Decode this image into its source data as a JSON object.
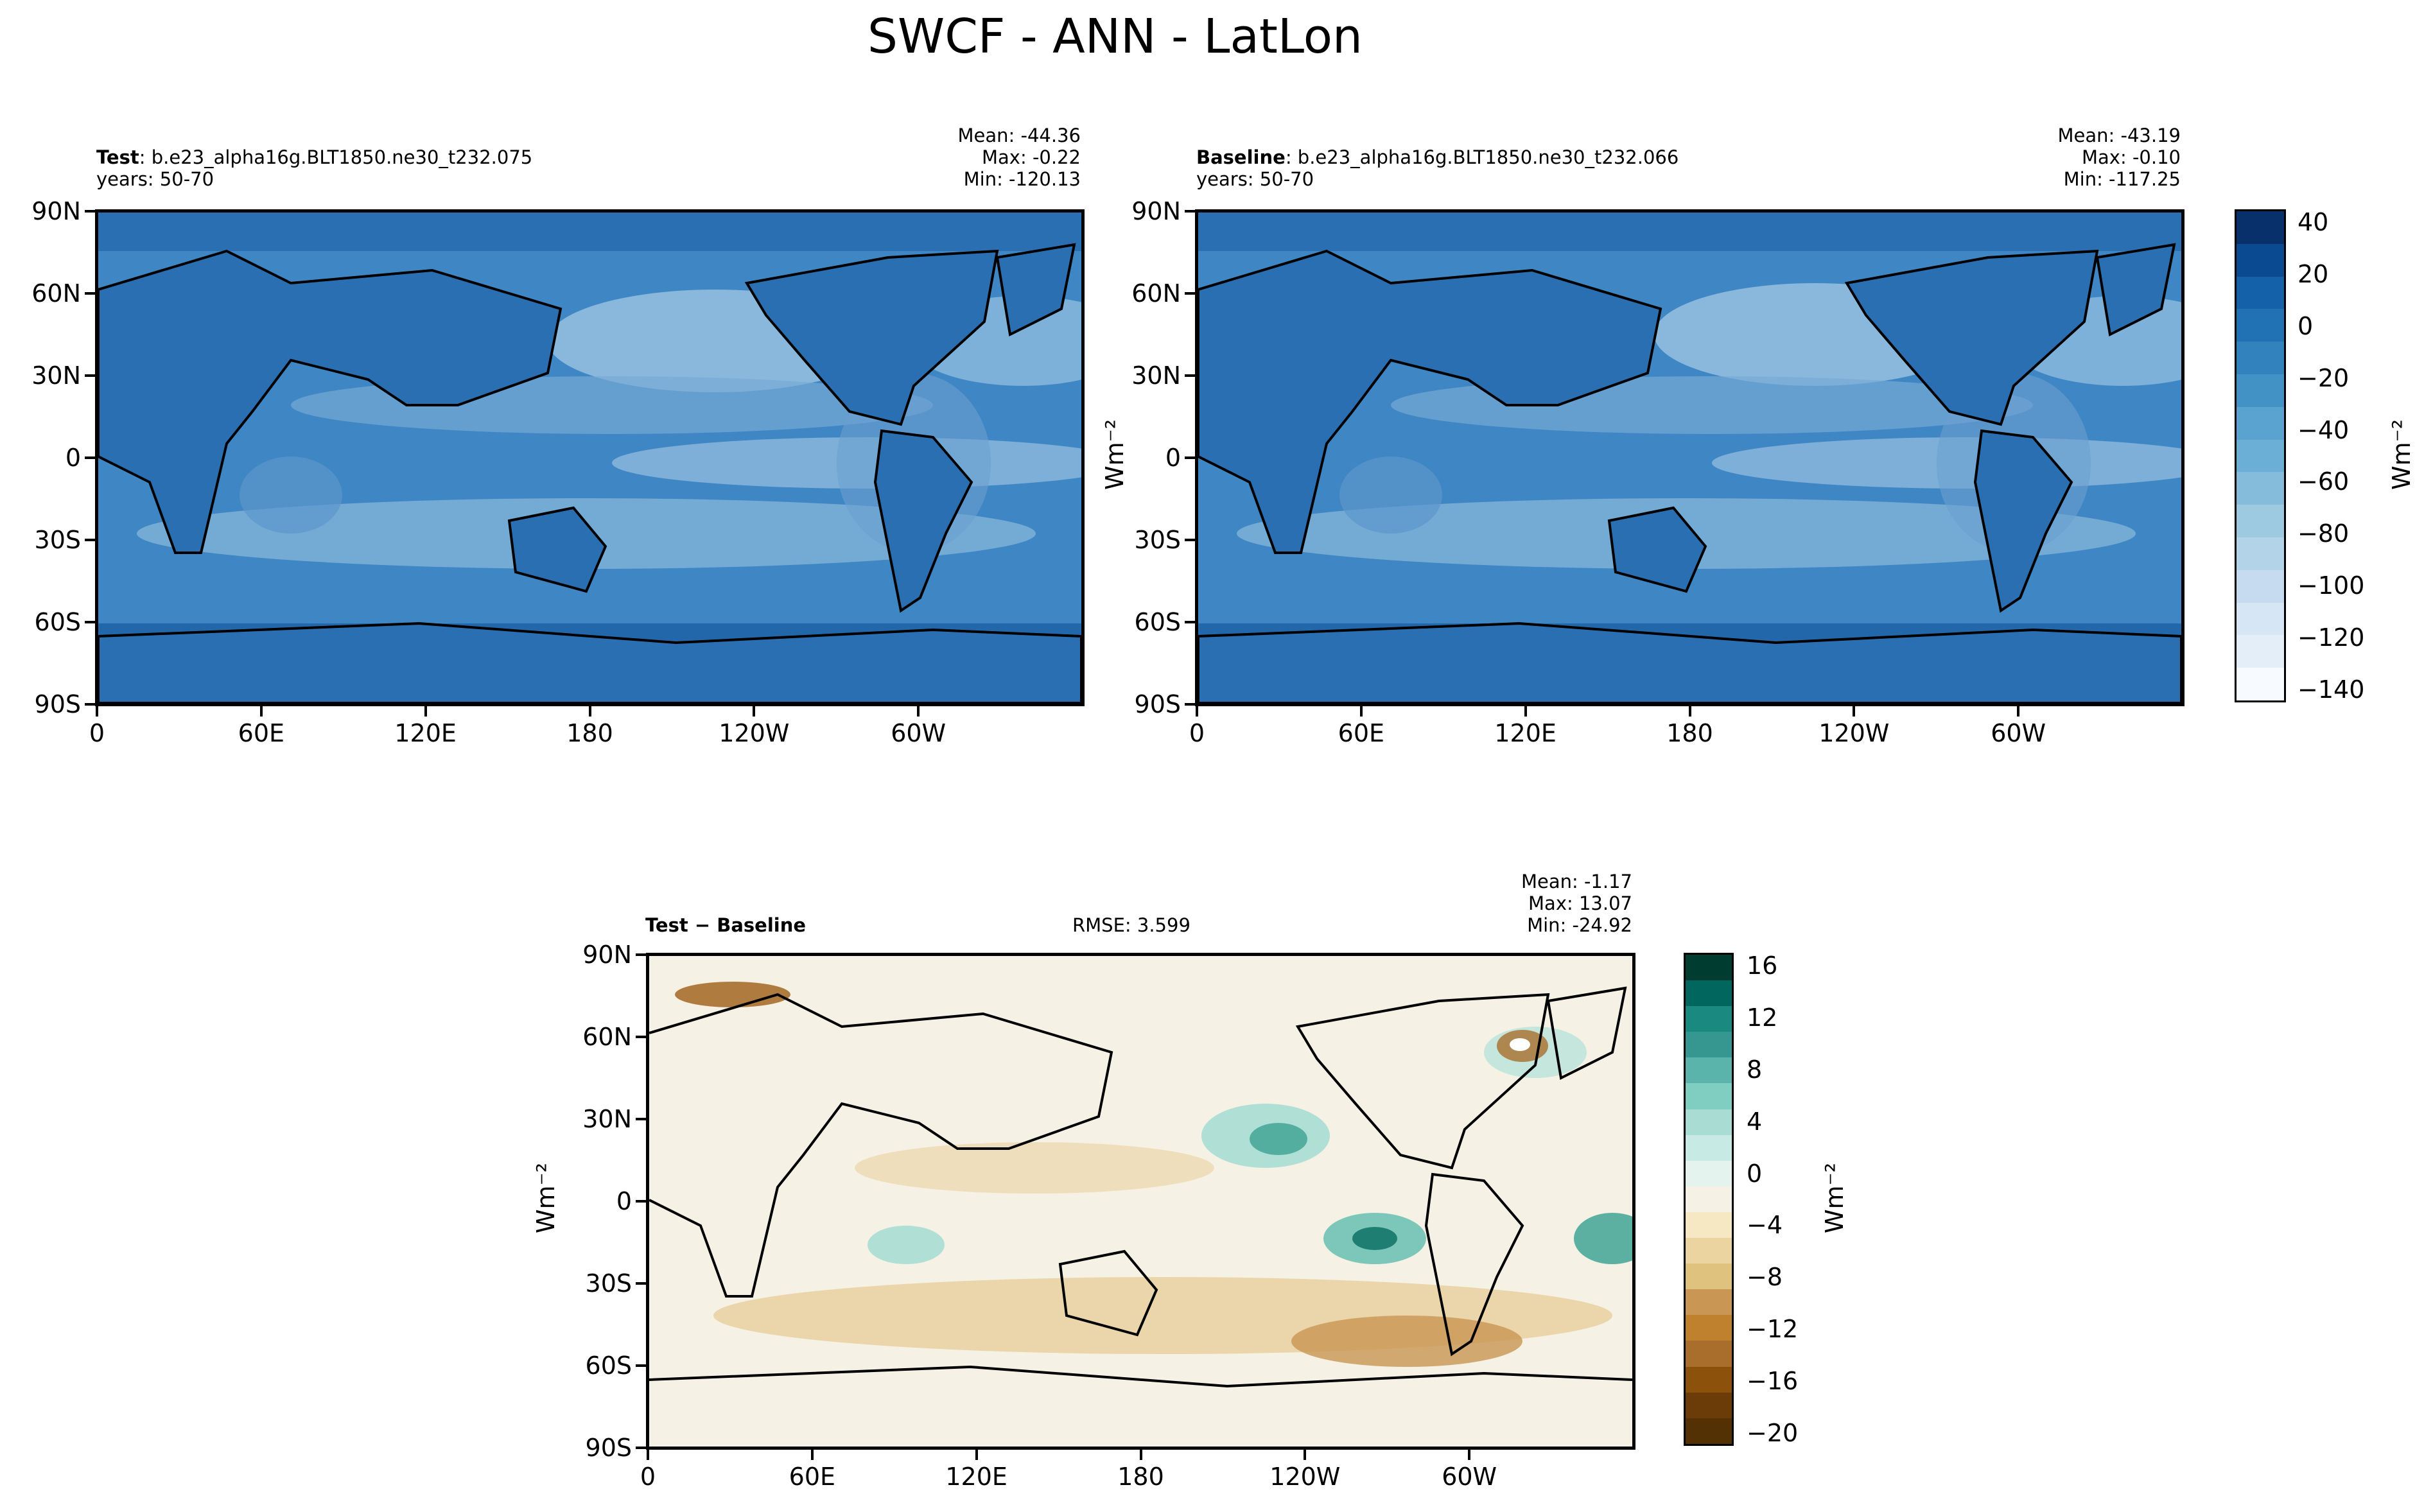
{
  "title": "SWCF - ANN - LatLon",
  "panels": {
    "test": {
      "label_bold": "Test",
      "label_rest": ": b.e23_alpha16g.BLT1850.ne30_t232.075",
      "years": "years: 50-70",
      "mean": "Mean: -44.36",
      "max": "Max: -0.22",
      "min": "Min: -120.13"
    },
    "baseline": {
      "label_bold": "Baseline",
      "label_rest": ": b.e23_alpha16g.BLT1850.ne30_t232.066",
      "years": "years: 50-70",
      "mean": "Mean: -43.19",
      "max": "Max: -0.10",
      "min": "Min: -117.25"
    },
    "diff": {
      "label": "Test − Baseline",
      "rmse": "RMSE: 3.599",
      "mean": "Mean: -1.17",
      "max": "Max: 13.07",
      "min": "Min: -24.92"
    }
  },
  "axes": {
    "lat_ticks": [
      "90N",
      "60N",
      "30N",
      "0",
      "30S",
      "60S",
      "90S"
    ],
    "lon_ticks": [
      "0",
      "60E",
      "120E",
      "180",
      "120W",
      "60W"
    ]
  },
  "units": "Wm⁻²",
  "colorbars": {
    "main": {
      "ticks": [
        "40",
        "20",
        "0",
        "−20",
        "−40",
        "−60",
        "−80",
        "−100",
        "−120",
        "−140"
      ],
      "range": [
        -150,
        40
      ]
    },
    "diff": {
      "ticks": [
        "16",
        "12",
        "8",
        "4",
        "0",
        "−4",
        "−8",
        "−12",
        "−16",
        "−20"
      ],
      "range": [
        -20,
        18
      ]
    }
  },
  "colors": {
    "ocean_mid": "#3a80bf",
    "land_dark": "#2166ac",
    "diff_neutral": "#f5f1e4",
    "diff_pos": "#4aa89a",
    "diff_neg": "#a96e2c"
  }
}
